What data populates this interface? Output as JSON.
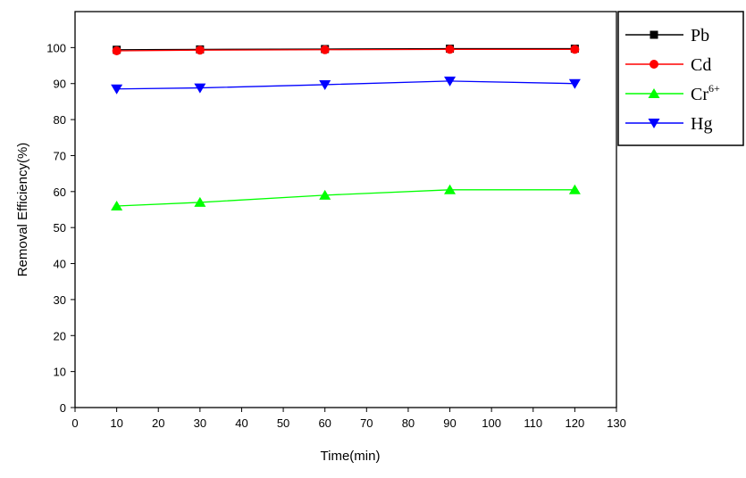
{
  "chart_data": {
    "type": "line",
    "title": "",
    "xlabel": "Time(min)",
    "ylabel": "Removal Efficiency(%)",
    "xlim": [
      0,
      130
    ],
    "ylim": [
      0,
      110
    ],
    "xticks": [
      0,
      10,
      20,
      30,
      40,
      50,
      60,
      70,
      80,
      90,
      100,
      110,
      120,
      130
    ],
    "yticks": [
      0,
      10,
      20,
      30,
      40,
      50,
      60,
      70,
      80,
      90,
      100
    ],
    "grid": false,
    "legend_position": "top-right",
    "x": [
      10,
      30,
      60,
      90,
      120
    ],
    "series": [
      {
        "name": "Pb",
        "label_main": "Pb",
        "label_sup": "",
        "color": "#000000",
        "marker": "square",
        "values": [
          99.4,
          99.5,
          99.6,
          99.7,
          99.7
        ]
      },
      {
        "name": "Cd",
        "label_main": "Cd",
        "label_sup": "",
        "color": "#ff0000",
        "marker": "circle",
        "values": [
          99.1,
          99.3,
          99.4,
          99.5,
          99.5
        ]
      },
      {
        "name": "Cr6+",
        "label_main": "Cr",
        "label_sup": "6+",
        "color": "#00ff00",
        "marker": "triangle-up",
        "values": [
          56.0,
          57.0,
          59.0,
          60.5,
          60.5
        ]
      },
      {
        "name": "Hg",
        "label_main": "Hg",
        "label_sup": "",
        "color": "#0000ff",
        "marker": "triangle-down",
        "values": [
          88.5,
          88.8,
          89.7,
          90.7,
          90.0
        ]
      }
    ]
  }
}
